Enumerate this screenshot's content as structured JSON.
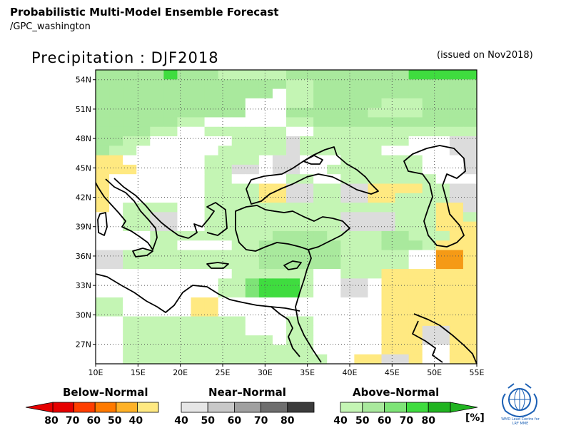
{
  "header": {
    "title": "Probabilistic Multi-Model Ensemble Forecast",
    "subtitle": "/GPC_washington",
    "map_title": "Precipitation : DJF2018",
    "issued": "(issued on Nov2018)"
  },
  "map": {
    "lon_min": 10,
    "lon_max": 55,
    "lat_min": 25,
    "lat_max": 55,
    "lat_ticks": [
      "54N",
      "51N",
      "48N",
      "45N",
      "42N",
      "39N",
      "36N",
      "33N",
      "30N",
      "27N"
    ],
    "lon_ticks": [
      "10E",
      "15E",
      "20E",
      "25E",
      "30E",
      "35E",
      "40E",
      "45E",
      "50E",
      "55E"
    ],
    "categories": {
      "W": "#ffffff",
      "G1": "#c4f5b4",
      "G2": "#a9e99d",
      "G3": "#7ee477",
      "G4": "#3fdc3f",
      "Y1": "#ffe981",
      "Y2": "#f9c23c",
      "O1": "#f59a16",
      "N1": "#dcdcdc"
    },
    "grid": [
      "G2 G2 G2 G2 G2 G4 G2 G2 G2 G1 G1 G1 G1 G1 G2 G2 G2 G2 G2 G2 G2 G2 G2 G4 G4 G4 G4 G4",
      "G2 G2 G2 G2 G2 G2 G2 G2 G2 G2 G2 G2 G2 G2 G1 G1 G2 G2 G2 G2 G2 G2 G2 G2 G2 G2 G2 G2",
      "G2 G2 G2 G2 G2 G2 G2 G2 G2 G2 G2 G2 G2 W G1 G1 G2 G2 G2 G2 G2 G2 G2 G2 G2 G2 G2 G2",
      "G2 G2 G2 G2 G2 G2 G2 G2 G2 G2 G2 W W W G1 G1 G2 G2 G2 G2 G2 G1 G1 G1 G2 G2 G2 G2",
      "G2 G2 G2 G2 G2 G2 G2 G2 G2 G2 G2 W W W G2 G2 G2 G2 G2 G2 G1 G1 G1 G1 G2 G2 G2 G2",
      "G2 G2 G2 G2 G2 G2 G1 G1 W W W W W W G1 G1 G2 G2 G2 G2 G2 G2 G2 G2 G2 G2 G2 G2",
      "G2 G2 G2 G2 G1 G1 W W G1 G1 G1 G1 G1 G1 W W G1 G1 G1 G1 G1 G1 G1 G1 G1 G1 G1 G1",
      "G2 G2 G1 G1 W W W W W W G1 G1 G1 G1 N1 G1 G1 G1 G1 G1 G1 G1 G1 W W W N1 N1",
      "G2 G1 G1 W W W W W W G1 G1 G1 G1 G1 N1 G1 G1 G1 G1 G1 G1 W W W W W N1 N1",
      "Y1 Y1 W W W W W W G1 G1 G1 G1 W N1 N1 W W W G1 G1 G1 G1 G1 G1 W W W N1",
      "Y1 Y1 Y1 W W W W W G1 G1 N1 N1 W N1 N1 W W G1 G1 G1 G1 G1 G1 G1 W W W N1",
      "Y1 W W W W W W W G1 G1 W W W W G1 G1 W W G1 G1 G1 G1 G1 G1 G1 W W W",
      "Y1 W W W W W W W G1 G1 G1 G1 Y1 Y1 N1 N1 G1 G1 N1 N1 Y1 Y1 Y1 Y1 G1 G1 N1 N1",
      "Y1 W W W W W W W G1 G1 G1 G1 Y1 Y1 N1 N1 G1 G1 N1 N1 Y1 Y1 G1 G1 G1 G1 N1 N1",
      "Y1 W G1 G1 G1 G1 W W G1 G1 G1 G1 G1 G1 G1 G1 G1 G1 G1 G1 G1 G1 G1 G1 G1 Y1 Y1 N1",
      "W W G1 G1 N1 N1 W W G1 G1 G1 G1 G1 G1 G1 G1 G1 G1 N1 N1 N1 N1 G1 G1 G1 Y1 Y1 G1",
      "W W G1 G1 N1 N1 W W G1 G1 G1 G1 G1 G1 G1 G1 G1 G1 N1 N1 N1 N1 G1 G1 G1 Y1 Y1 Y1",
      "W W W W G1 G1 G1 G1 G1 G1 G1 G1 G1 G2 G2 G2 G2 G1 G1 G1 G1 G2 G2 G1 G1 G1 Y1 Y1",
      "W W W W G1 G1 W W W W G1 G1 G2 G2 G2 G2 G2 G2 G1 G1 G1 G2 G2 G2 G1 Y1 Y1 Y1",
      "N1 N1 G1 G1 G1 G1 G1 G1 G1 G1 G1 G1 G2 G2 G2 G2 G2 G2 G1 G1 G1 G1 G1 W W O1 O1 Y1",
      "N1 N1 G1 G1 G1 G1 G1 G1 G1 G1 G1 G1 G2 G2 G2 G2 G2 G2 G1 G1 G1 G1 G1 W W O1 O1 Y1",
      "W W W W W W W W W W G1 G1 G1 G1 G1 G1 W W G1 G1 G1 Y1 Y1 Y1 Y1 Y1 Y1 Y1",
      "W W W W W W W W W G1 G1 G3 G4 G4 G4 G1 W W N1 N1 W Y1 Y1 Y1 Y1 Y1 Y1 Y1",
      "W W W W W W W W W G1 G1 G3 G4 G4 G4 G1 W W N1 N1 W Y1 Y1 Y1 Y1 Y1 Y1 Y1",
      "G1 G1 W W W W W Y1 Y1 W W W W W W W W W W W W Y1 Y1 Y1 Y1 Y1 Y1 Y1",
      "G1 G1 W W W W W Y1 Y1 W W W W W W W W W W W W Y1 Y1 Y1 Y1 Y1 Y1 Y1",
      "W W G1 G1 G1 G1 G1 G1 G1 G1 G1 W W W G1 G1 W W W W W Y1 Y1 Y1 Y1 Y1 Y1 Y1",
      "W W G1 G1 G1 G1 G1 G1 G1 G1 G1 W W W G1 G1 W W W W W Y1 Y1 Y1 N1 N1 Y1 Y1",
      "W W G1 G1 G1 G1 G1 G1 G1 G1 G1 G1 G1 W G1 G1 W W W W W Y1 Y1 Y1 N1 N1 Y1 Y1",
      "W W G1 G1 G1 G1 G1 G1 G1 G1 G1 G1 G1 G1 G1 G1 W W W W W Y1 Y1 Y1 W W Y1 Y1",
      "W W G1 G1 G1 G1 G1 G1 G1 G1 G1 G1 G1 G1 G1 G1 G1 W W Y1 Y1 N1 N1 Y1 W W Y1 Y1"
    ]
  },
  "legend": {
    "below": {
      "title": "Below–Normal",
      "labels": [
        "80",
        "70",
        "60",
        "50",
        "40"
      ],
      "colors": [
        "#e60000",
        "#ff3e00",
        "#ff7a00",
        "#ffb228",
        "#ffe981"
      ]
    },
    "near": {
      "title": "Near–Normal",
      "labels": [
        "40",
        "50",
        "60",
        "70",
        "80"
      ],
      "colors": [
        "#e6e6e6",
        "#c8c8c8",
        "#a0a0a0",
        "#6e6e6e",
        "#3c3c3c"
      ]
    },
    "above": {
      "title": "Above–Normal",
      "labels": [
        "40",
        "50",
        "60",
        "70",
        "80"
      ],
      "colors": [
        "#c4f5b4",
        "#a9e99d",
        "#7ee477",
        "#3fdc3f",
        "#21b421"
      ]
    },
    "unit": "[%]"
  },
  "logo": {
    "icon": "wmo-emblem-icon",
    "text_line1": "WMO Lead Centre for",
    "text_line2": "LRF MME"
  }
}
